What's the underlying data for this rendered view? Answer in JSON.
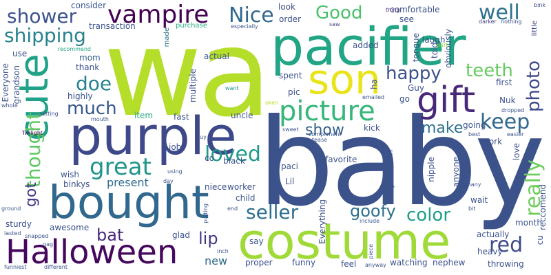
{
  "words": {
    "wa": "wa",
    "baby": "baby",
    "pacifier": "pacifier",
    "purple": "purple",
    "costume": "costume",
    "bought": "bought",
    "cute": "cute",
    "son": "son",
    "gift": "gift",
    "halloween": "Halloween",
    "picture": "picture",
    "vampire": "vampire",
    "shower": "shower",
    "shipping": "shipping",
    "nice": "Nice",
    "good": "Good",
    "well": "well",
    "happy": "happy",
    "teeth": "teeth",
    "photo": "photo",
    "doe": "doe",
    "much": "much",
    "thought": "thought",
    "great": "great",
    "keep": "keep",
    "make": "make",
    "show": "show",
    "loved": "loved",
    "really": "really",
    "seller": "seller",
    "goofy": "goofy",
    "color": "color",
    "red": "red",
    "got": "got",
    "bat": "bat",
    "lip": "lip",
    "present": "present",
    "new": "new",
    "consider": "consider",
    "transaction": "transaction",
    "comfortable": "comfortable",
    "look": "look",
    "order": "order",
    "see": "see",
    "saw": "saw",
    "thing": "thing",
    "bink": "bink",
    "darker": "darker",
    "nothing": "nothing",
    "little": "little",
    "especially": "especially",
    "purchase": "purchase",
    "made": "made",
    "mom": "mom",
    "use": "use",
    "recommend": "recommend",
    "added": "added",
    "tongue": "tongue",
    "laugh": "laugh",
    "told": "told",
    "obviously": "obviously",
    "part": "part",
    "thank": "thank",
    "actual": "actual",
    "everyone": "Everyone",
    "grandson": "grandson",
    "highly": "highly",
    "multiple": "multiple",
    "want": "want",
    "spent": "spent",
    "pic": "pic",
    "ha": "ha",
    "guy": "Guy",
    "first": "first",
    "whole": "whole",
    "emailed": "emailed",
    "go": "go",
    "oken": "oken",
    "getting": "getting",
    "item": "item",
    "fast": "fast",
    "nuk": "Nuk",
    "dropped": "dropped",
    "twilight": "Twilight",
    "mouth": "mouth",
    "uncle": "uncle",
    "sweet": "sweet",
    "compliment": "compliment",
    "kick": "kick",
    "going": "going",
    "best": "best",
    "easier": "easier",
    "coz": "coz",
    "work": "work",
    "love": "love",
    "job": "job",
    "buy": "buy",
    "tease": "tease",
    "co": "co",
    "black": "black",
    "favorite": "favorite",
    "wish": "wish",
    "binkys": "binkys",
    "using": "using",
    "day": "day",
    "paci": "paci",
    "yellowish": "yellowish",
    "nipple": "nipple",
    "anyone": "anyone",
    "niece": "niece",
    "worker": "worker",
    "lil": "Lil",
    "many": "many",
    "ground": "ground",
    "child": "child",
    "wait": "wait",
    "reccomend": "reccomend",
    "sturdy": "sturdy",
    "putting": "putting",
    "end": "end",
    "bit": "bit",
    "include": "include",
    "lasted": "lasted",
    "awesome": "awesome",
    "glad": "glad",
    "everything": "Everything",
    "month": "month",
    "snapped": "snapped",
    "actually": "actually",
    "cu": "cu",
    "gag": "gag",
    "say": "say",
    "inch": "inch",
    "heavy": "heavy",
    "piece": "piece",
    "proper": "proper",
    "funny": "funny",
    "feel": "feel",
    "anyway": "anyway",
    "watching": "watching",
    "nephew": "nephew",
    "throwing": "throwing",
    "funniest": "funniest",
    "different": "different"
  }
}
